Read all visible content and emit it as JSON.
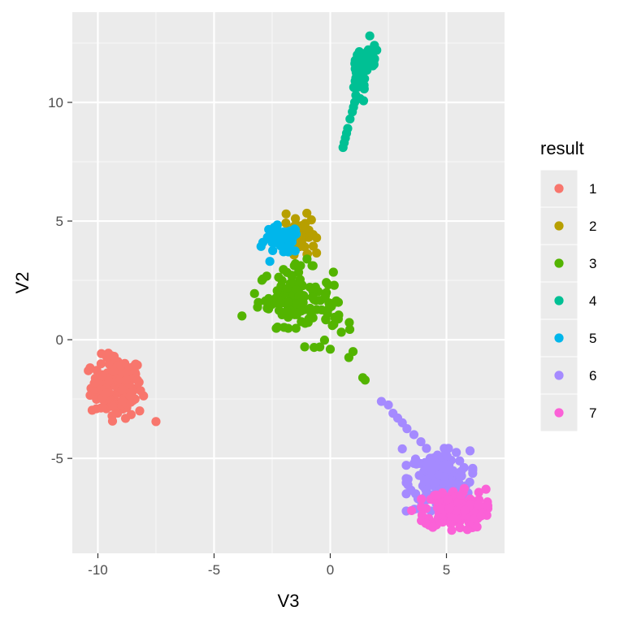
{
  "chart_data": {
    "type": "scatter",
    "title": "",
    "xlabel": "V3",
    "ylabel": "V2",
    "xlim": [
      -11.1,
      7.5
    ],
    "ylim": [
      -9.0,
      13.8
    ],
    "x_ticks": [
      -10,
      -5,
      0,
      5
    ],
    "x_tick_labels": [
      "-10",
      "-5",
      "0",
      "5"
    ],
    "y_ticks": [
      -5,
      0,
      5,
      10
    ],
    "y_tick_labels": [
      "-5",
      "0",
      "5",
      "10"
    ],
    "grid": true,
    "panel_background": "#ebebeb",
    "legend": {
      "title": "result",
      "position": "right"
    },
    "series": [
      {
        "name": "1",
        "color": "#f8766d",
        "clusters": [
          {
            "cx": -9.2,
            "cy": -2.0,
            "sx": 0.55,
            "sy": 0.65,
            "n": 140
          }
        ],
        "points": [
          [
            -7.5,
            -3.45
          ],
          [
            -8.2,
            -3.0
          ],
          [
            -10.1,
            -1.8
          ],
          [
            -9.3,
            -0.7
          ],
          [
            -8.3,
            -1.7
          ]
        ]
      },
      {
        "name": "2",
        "color": "#b79f00",
        "clusters": [
          {
            "cx": -1.25,
            "cy": 4.45,
            "sx": 0.3,
            "sy": 0.4,
            "n": 60
          }
        ],
        "points": [
          [
            -1.9,
            5.3
          ],
          [
            -1.0,
            3.6
          ],
          [
            -1.5,
            5.1
          ]
        ]
      },
      {
        "name": "3",
        "color": "#53b400",
        "clusters": [
          {
            "cx": -1.5,
            "cy": 1.8,
            "sx": 0.8,
            "sy": 0.6,
            "n": 110
          },
          {
            "cx": 0.1,
            "cy": 0.6,
            "sx": 0.4,
            "sy": 0.5,
            "n": 20
          }
        ],
        "points": [
          [
            -3.8,
            1.0
          ],
          [
            -1.1,
            -0.3
          ],
          [
            0.8,
            -0.75
          ],
          [
            1.4,
            -1.6
          ],
          [
            1.5,
            -1.7
          ],
          [
            0.0,
            -0.4
          ],
          [
            -1.0,
            3.4
          ],
          [
            -1.5,
            3.2
          ]
        ]
      },
      {
        "name": "4",
        "color": "#00c094",
        "clusters": [
          {
            "cx": 1.6,
            "cy": 11.8,
            "sx": 0.25,
            "sy": 0.4,
            "n": 35
          },
          {
            "cx": 1.25,
            "cy": 10.9,
            "sx": 0.2,
            "sy": 0.5,
            "n": 25
          }
        ],
        "points": [
          [
            0.55,
            8.1
          ],
          [
            0.6,
            8.3
          ],
          [
            0.65,
            8.5
          ],
          [
            0.7,
            8.7
          ],
          [
            0.75,
            8.9
          ],
          [
            0.85,
            9.3
          ],
          [
            0.95,
            9.6
          ],
          [
            1.0,
            9.8
          ],
          [
            1.05,
            10.0
          ],
          [
            1.1,
            10.3
          ],
          [
            1.7,
            12.8
          ],
          [
            1.9,
            12.4
          ],
          [
            2.0,
            12.2
          ]
        ]
      },
      {
        "name": "5",
        "color": "#00b6eb",
        "clusters": [
          {
            "cx": -2.1,
            "cy": 4.2,
            "sx": 0.4,
            "sy": 0.3,
            "n": 45
          }
        ],
        "points": [
          [
            -2.6,
            3.3
          ],
          [
            -2.9,
            4.1
          ],
          [
            -1.8,
            3.7
          ]
        ]
      },
      {
        "name": "6",
        "color": "#a58aff",
        "clusters": [
          {
            "cx": 4.7,
            "cy": -5.9,
            "sx": 0.65,
            "sy": 0.6,
            "n": 180
          }
        ],
        "points": [
          [
            2.2,
            -2.6
          ],
          [
            2.5,
            -2.75
          ],
          [
            2.7,
            -3.1
          ],
          [
            2.9,
            -3.3
          ],
          [
            3.1,
            -3.5
          ],
          [
            3.3,
            -3.75
          ],
          [
            3.6,
            -4.0
          ],
          [
            3.9,
            -4.3
          ],
          [
            3.1,
            -4.6
          ],
          [
            6.0,
            -6.0
          ],
          [
            5.5,
            -6.3
          ]
        ]
      },
      {
        "name": "7",
        "color": "#fb61d7",
        "clusters": [
          {
            "cx": 5.35,
            "cy": -7.15,
            "sx": 0.65,
            "sy": 0.4,
            "n": 170
          }
        ],
        "points": [
          [
            6.7,
            -6.3
          ],
          [
            3.5,
            -7.2
          ],
          [
            5.9,
            -8.0
          ]
        ]
      }
    ]
  }
}
